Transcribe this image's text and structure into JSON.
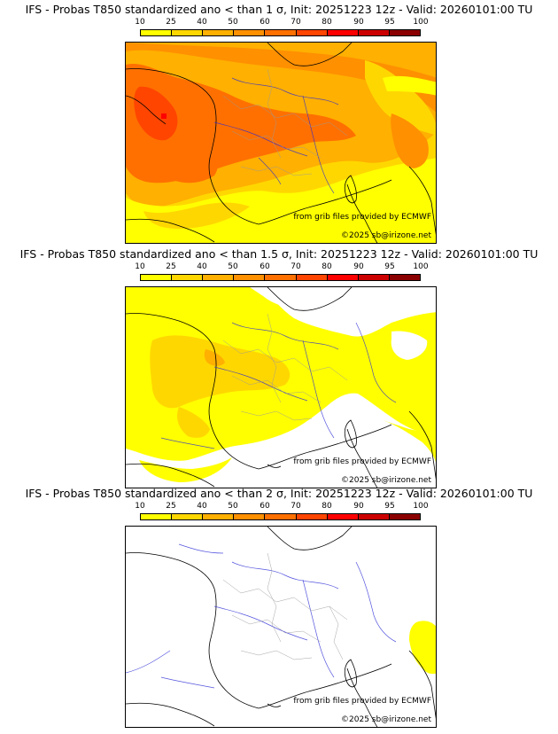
{
  "colors": {
    "scale": [
      "#ffff00",
      "#ffd700",
      "#ffb000",
      "#ff9000",
      "#ff7000",
      "#ff4500",
      "#ff0000",
      "#cc0000",
      "#8b0000",
      "#4a0000"
    ],
    "coast": "#000000",
    "rivers": "#2b2bd6",
    "borders": "#9a9a9a"
  },
  "scale_labels": [
    "10",
    "25",
    "40",
    "50",
    "60",
    "70",
    "80",
    "90",
    "95",
    "100"
  ],
  "panels": [
    {
      "title": "IFS - Probas T850  standardized ano < than 1 σ, Init: 20251223 12z - Valid: 20260101:00 TU",
      "source": "from grib files provided by ECMWF",
      "copyright": "©2025 sb@irizone.net"
    },
    {
      "title": "IFS - Probas T850  standardized ano < than 1.5 σ, Init: 20251223 12z - Valid: 20260101:00 TU",
      "source": "from grib files provided by ECMWF",
      "copyright": "©2025 sb@irizone.net"
    },
    {
      "title": "IFS - Probas T850  standardized ano < than 2 σ, Init: 20251223 12z - Valid: 20260101:00 TU",
      "source": "from grib files provided by ECMWF",
      "copyright": "©2025 sb@irizone.net"
    }
  ]
}
